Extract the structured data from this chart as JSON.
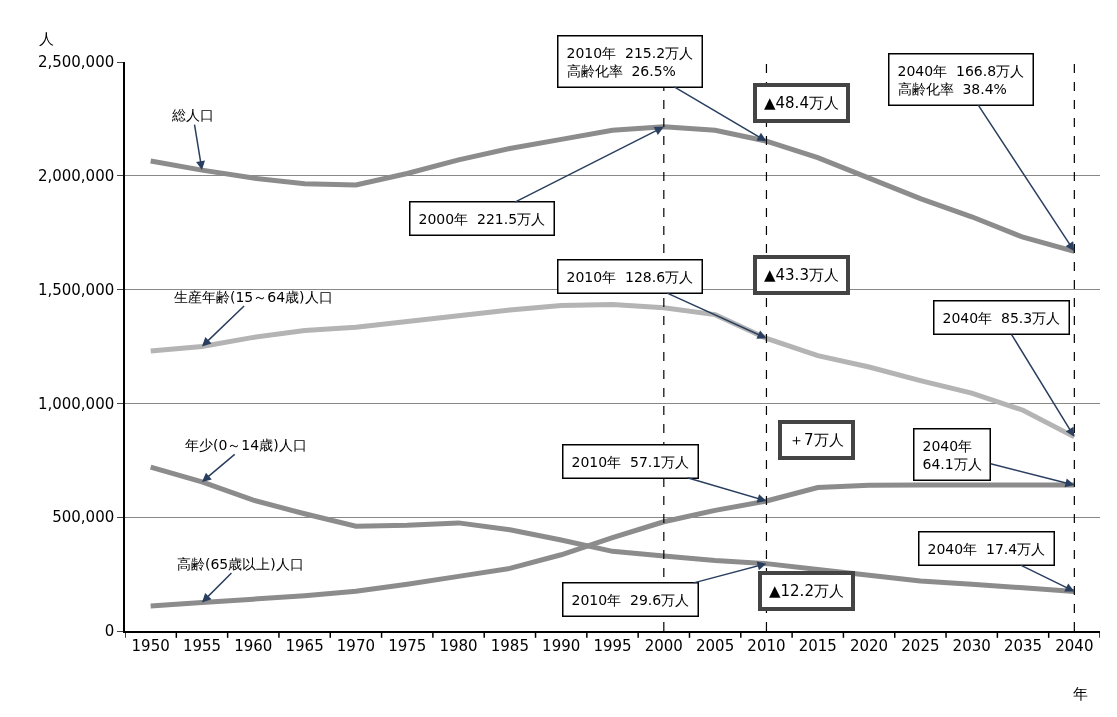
{
  "chart_data": {
    "type": "line",
    "xlabel": "年",
    "ylabel": "人",
    "categories": [
      "1950",
      "1955",
      "1960",
      "1965",
      "1970",
      "1975",
      "1980",
      "1985",
      "1990",
      "1995",
      "2000",
      "2005",
      "2010",
      "2015",
      "2020",
      "2025",
      "2030",
      "2035",
      "2040"
    ],
    "series": [
      {
        "name": "総人口",
        "color": "#8c8c8c",
        "values": [
          2065000,
          2025000,
          1990000,
          1965000,
          1960000,
          2010000,
          2070000,
          2120000,
          2160000,
          2200000,
          2215000,
          2200000,
          2152000,
          2080000,
          1990000,
          1900000,
          1820000,
          1730000,
          1668000
        ]
      },
      {
        "name": "生産年齢(15～64歳)人口",
        "color": "#b4b4b4",
        "values": [
          1230000,
          1250000,
          1290000,
          1320000,
          1335000,
          1360000,
          1385000,
          1410000,
          1430000,
          1435000,
          1420000,
          1390000,
          1286000,
          1210000,
          1160000,
          1100000,
          1045000,
          970000,
          853000
        ]
      },
      {
        "name": "年少(0～14歳)人口",
        "color": "#8c8c8c",
        "values": [
          720000,
          655000,
          575000,
          515000,
          460000,
          465000,
          475000,
          445000,
          400000,
          350000,
          330000,
          310000,
          296000,
          270000,
          245000,
          220000,
          205000,
          190000,
          174000
        ]
      },
      {
        "name": "高齢(65歳以上)人口",
        "color": "#8c8c8c",
        "values": [
          110000,
          125000,
          140000,
          155000,
          175000,
          205000,
          240000,
          275000,
          335000,
          410000,
          480000,
          530000,
          571000,
          630000,
          640000,
          641000,
          641000,
          641000,
          641000
        ]
      }
    ],
    "ylim": [
      0,
      2500000
    ],
    "yticks": [
      {
        "value": 0,
        "label": "0"
      },
      {
        "value": 500000,
        "label": "500,000"
      },
      {
        "value": 1000000,
        "label": "1,000,000"
      },
      {
        "value": 1500000,
        "label": "1,500,000"
      },
      {
        "value": 2000000,
        "label": "2,000,000"
      },
      {
        "value": 2500000,
        "label": "2,500,000"
      }
    ],
    "grid": "y",
    "legend": false,
    "marker": "none",
    "line_style": "solid",
    "ref_lines": [
      {
        "axis": "x",
        "value": "2000",
        "color": "#000000",
        "line_style": "dashed"
      },
      {
        "axis": "x",
        "value": "2010",
        "color": "#000000",
        "line_style": "dashed"
      },
      {
        "axis": "x",
        "value": "2040",
        "color": "#000000",
        "line_style": "dashed"
      }
    ],
    "annotations": [
      {
        "text": "2010年  215.2万人高齢化率  26.5%",
        "x": "2010",
        "y": 2152000
      },
      {
        "text": "2040年  166.8万人高齢化率  38.4%",
        "x": "2040",
        "y": 1668000
      },
      {
        "text": "2000年  221.5万人",
        "x": "2000",
        "y": 2215000
      },
      {
        "text": "2010年  128.6万人",
        "x": "2010",
        "y": 1286000
      },
      {
        "text": "2040年  85.3万人",
        "x": "2040",
        "y": 853000
      },
      {
        "text": "2010年  57.1万人",
        "x": "2010",
        "y": 571000
      },
      {
        "text": "2040年\n64.1万人",
        "x": "2040",
        "y": 641000
      },
      {
        "text": "2010年  29.6万人",
        "x": "2010",
        "y": 296000
      },
      {
        "text": "2040年  17.4万人",
        "x": "2040",
        "y": 174000
      },
      "▲48.4万人",
      "▲43.3万人",
      "＋7万人",
      "▲12.2万人"
    ]
  }
}
